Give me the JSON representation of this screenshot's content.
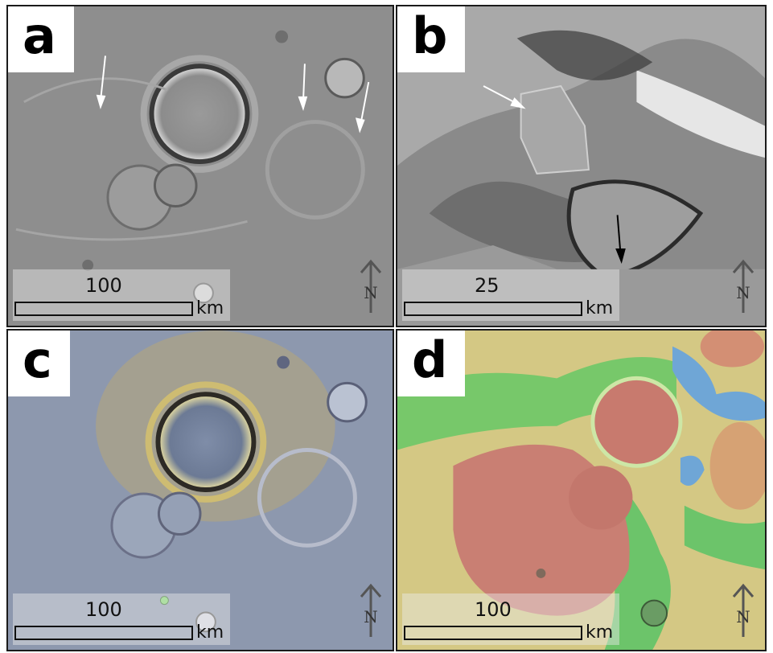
{
  "panels": [
    {
      "id": "a",
      "label": "a",
      "scale_value": "100",
      "scale_unit": "km",
      "north_label": "N"
    },
    {
      "id": "b",
      "label": "b",
      "scale_value": "25",
      "scale_unit": "km",
      "north_label": "N"
    },
    {
      "id": "c",
      "label": "c",
      "scale_value": "100",
      "scale_unit": "km",
      "north_label": "N"
    },
    {
      "id": "d",
      "label": "d",
      "scale_value": "100",
      "scale_unit": "km",
      "north_label": "N"
    }
  ],
  "colors": {
    "border": "#1b1b1b",
    "map_red": "#c87a6e",
    "map_green": "#6cc46a",
    "map_yellow": "#d6c98a",
    "map_blue": "#6fa6d6",
    "arrow_white": "#ffffff",
    "arrow_black": "#000000"
  }
}
